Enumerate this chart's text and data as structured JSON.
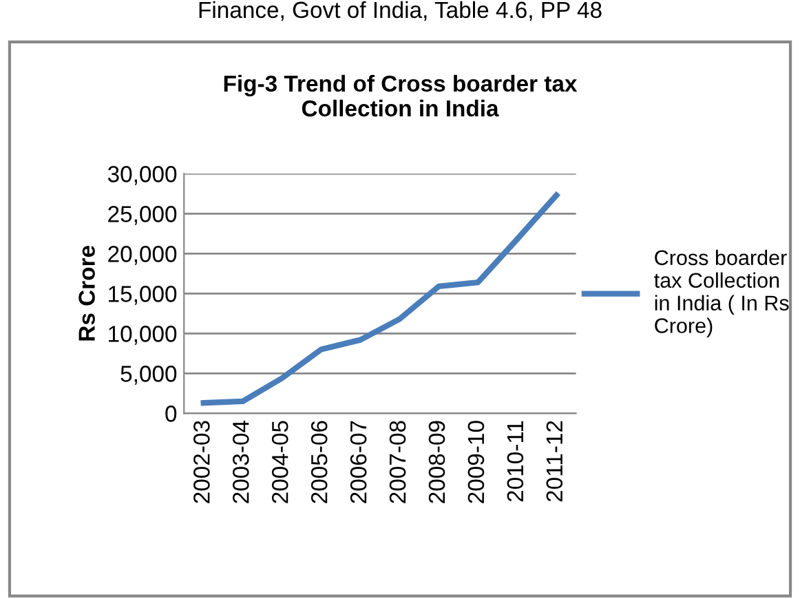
{
  "chart_data": {
    "type": "line",
    "title": "Fig-3 Trend of Cross boarder tax Collection in India",
    "ylabel": "Rs Crore",
    "annotations": [
      "Finance, Govt of India, Table 4.6, PP 48"
    ],
    "categories": [
      "2002-03",
      "2003-04",
      "2004-05",
      "2005-06",
      "2006-07",
      "2007-08",
      "2008-09",
      "2009-10",
      "2010-11",
      "2011-12"
    ],
    "series": [
      {
        "name": "Cross boarder tax Collection in India ( In Rs Crore)",
        "color": "#4a7ebb",
        "values": [
          1300,
          1500,
          4400,
          8000,
          9200,
          11800,
          15900,
          16400,
          21800,
          27300
        ]
      }
    ],
    "ylim": [
      0,
      30000
    ],
    "yticks": [
      {
        "value": 0,
        "label": "0"
      },
      {
        "value": 5000,
        "label": "5,000"
      },
      {
        "value": 10000,
        "label": "10,000"
      },
      {
        "value": 15000,
        "label": "15,000"
      },
      {
        "value": 20000,
        "label": "20,000"
      },
      {
        "value": 25000,
        "label": "25,000"
      },
      {
        "value": 30000,
        "label": "30,000"
      }
    ],
    "grid": "y",
    "legend": "right",
    "marker": "none",
    "line_style": "solid"
  }
}
